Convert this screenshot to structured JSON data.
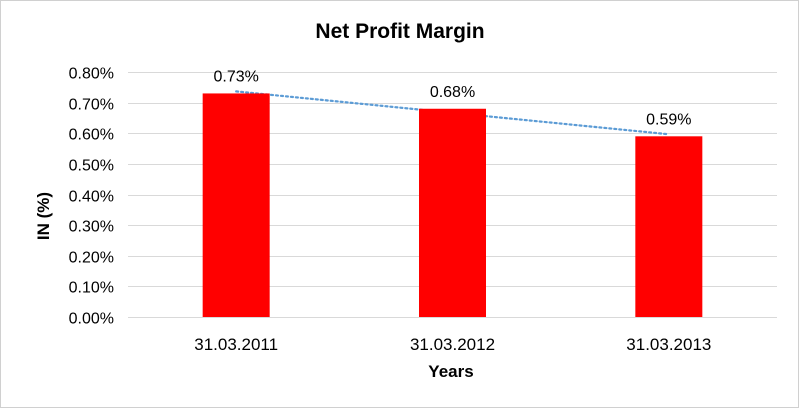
{
  "chart_data": {
    "type": "bar",
    "title": "Net Profit Margin",
    "xlabel": "Years",
    "ylabel": "IN (%)",
    "categories": [
      "31.03.2011",
      "31.03.2012",
      "31.03.2013"
    ],
    "values": [
      0.73,
      0.68,
      0.59
    ],
    "data_labels": [
      "0.73%",
      "0.68%",
      "0.59%"
    ],
    "ylim": [
      0,
      0.8
    ],
    "yticks": [
      0,
      0.1,
      0.2,
      0.3,
      0.4,
      0.5,
      0.6,
      0.7,
      0.8
    ],
    "ytick_labels": [
      "0.00%",
      "0.10%",
      "0.20%",
      "0.30%",
      "0.40%",
      "0.50%",
      "0.60%",
      "0.70%",
      "0.80%"
    ],
    "grid": true,
    "trendline": "linear",
    "colors": {
      "bar": "#ff0000",
      "trendline": "#5b9bd5",
      "grid": "#d9d9d9"
    }
  }
}
